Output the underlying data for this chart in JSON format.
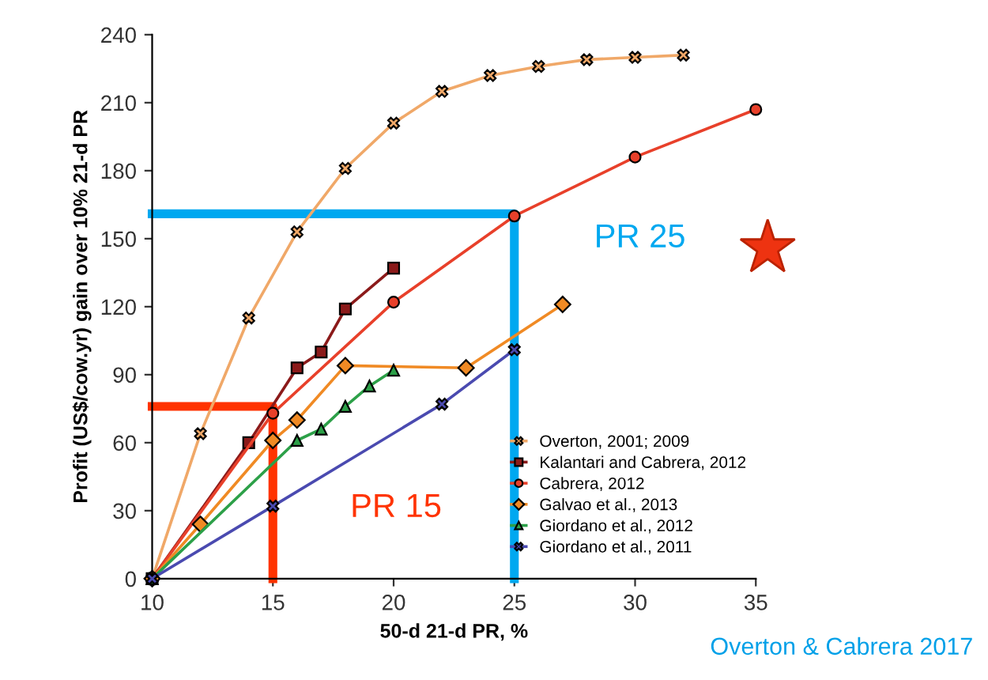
{
  "chart_data": {
    "type": "line",
    "xlabel": "50-d 21-d PR, %",
    "ylabel": "Profit (US$/cow.yr) gain over 10% 21-d PR",
    "xlim": [
      10,
      35
    ],
    "xticks": [
      10,
      15,
      20,
      25,
      30,
      35
    ],
    "ylim": [
      0,
      240
    ],
    "yticks": [
      0,
      30,
      60,
      90,
      120,
      150,
      180,
      210,
      240
    ],
    "grid": false,
    "legend": "bottom right",
    "series": [
      {
        "name": "Overton, 2001; 2009",
        "color": "#f0a868",
        "marker": "cross",
        "x": [
          10,
          12,
          14,
          16,
          18,
          20,
          22,
          24,
          26,
          28,
          30,
          32
        ],
        "values": [
          0,
          64,
          115,
          153,
          181,
          201,
          215,
          222,
          226,
          229,
          230,
          231
        ]
      },
      {
        "name": "Kalantari and Cabrera, 2012",
        "color": "#8b1a1a",
        "marker": "square",
        "x": [
          10,
          14,
          16,
          17,
          18,
          20
        ],
        "values": [
          0,
          60,
          93,
          100,
          119,
          137
        ]
      },
      {
        "name": "Cabrera, 2012",
        "color": "#e8402a",
        "marker": "circle",
        "x": [
          10,
          15,
          20,
          25,
          30,
          35
        ],
        "values": [
          0,
          73,
          122,
          160,
          186,
          207
        ]
      },
      {
        "name": "Galvao et al., 2013",
        "color": "#f08a24",
        "marker": "diamond",
        "x": [
          10,
          12,
          15,
          16,
          18,
          23,
          27
        ],
        "values": [
          0,
          24,
          61,
          70,
          94,
          93,
          121
        ]
      },
      {
        "name": "Giordano et al., 2012",
        "color": "#2ca048",
        "marker": "triangle",
        "x": [
          10,
          16,
          17,
          18,
          19,
          20
        ],
        "values": [
          0,
          61,
          66,
          76,
          85,
          92
        ]
      },
      {
        "name": "Giordano et al., 2011",
        "color": "#4a4ab0",
        "marker": "cross",
        "x": [
          10,
          15,
          22,
          25
        ],
        "values": [
          0,
          32,
          77,
          101
        ]
      },
      {
        "color": "#ff3300",
        "marker": "none",
        "x": [
          10,
          15,
          15
        ],
        "values": [
          76,
          76,
          0
        ]
      },
      {
        "color": "#00a8f0",
        "marker": "none",
        "x": [
          10,
          25,
          25
        ],
        "values": [
          161,
          161,
          0
        ]
      }
    ],
    "annotations": [
      "PR 25",
      "PR 15",
      "Overton & Cabrera 2017"
    ]
  }
}
